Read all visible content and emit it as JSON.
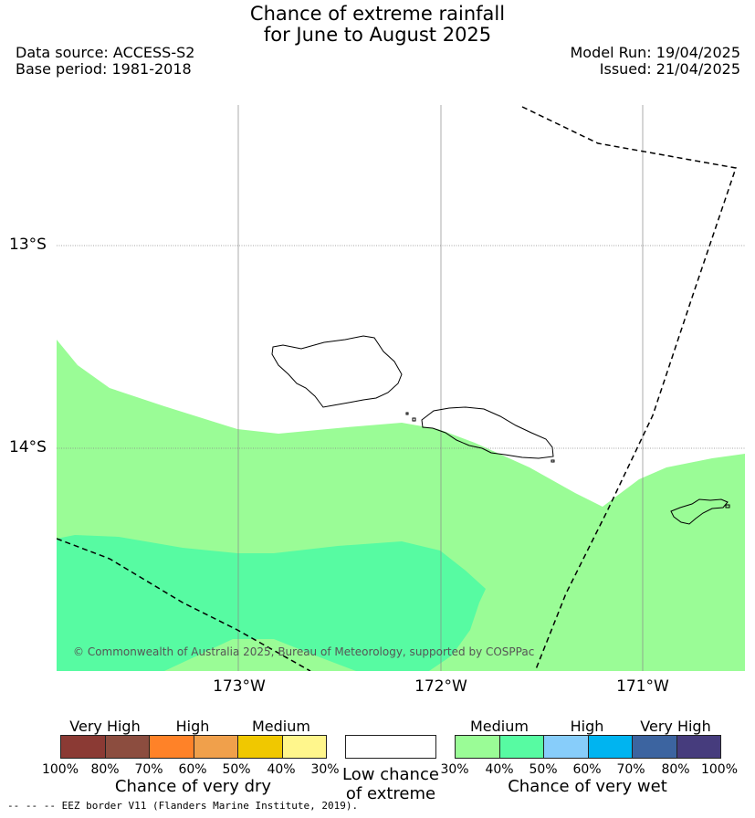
{
  "title": {
    "line1": "Chance of extreme rainfall",
    "line2": "for June to August 2025"
  },
  "meta": {
    "data_source": "Data source: ACCESS-S2",
    "base_period": "Base period: 1981-2018",
    "model_run": "Model Run: 19/04/2025",
    "issued": "Issued: 21/04/2025"
  },
  "map": {
    "lat_labels": [
      "13°S",
      "14°S"
    ],
    "lon_labels": [
      "173°W",
      "172°W",
      "171°W"
    ],
    "copyright": "© Commonwealth of Australia 2025, Bureau of Meteorology, supported by COSPPac",
    "colors": {
      "wet_medium_30_40": "#9afc96",
      "wet_medium_40_50": "#57fba2",
      "coastline": "#000000",
      "eez_line": "#000000"
    }
  },
  "legend": {
    "dry": {
      "categories": [
        "Very High",
        "High",
        "Medium"
      ],
      "ticks": [
        "100%",
        "80%",
        "70%",
        "60%",
        "50%",
        "40%",
        "30%"
      ],
      "colors": [
        "#8b3a34",
        "#8c4d3f",
        "#ff8228",
        "#f0a04b",
        "#f0c800",
        "#fff68c"
      ],
      "caption": "Chance of very dry"
    },
    "low": {
      "caption_line1": "Low chance",
      "caption_line2": "of extreme",
      "color": "#ffffff"
    },
    "wet": {
      "categories": [
        "Medium",
        "High",
        "Very High"
      ],
      "ticks": [
        "30%",
        "40%",
        "50%",
        "60%",
        "70%",
        "80%",
        "100%"
      ],
      "colors": [
        "#9afc96",
        "#57fba2",
        "#87cdfa",
        "#00b4f0",
        "#3c64a0",
        "#463c7d"
      ],
      "caption": "Chance of very wet"
    }
  },
  "footer": {
    "eez_note": "-- -- -- EEZ border V11 (Flanders Marine Institute, 2019)."
  }
}
